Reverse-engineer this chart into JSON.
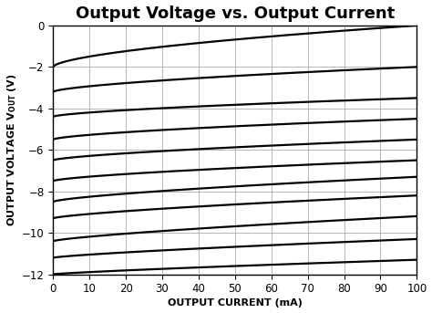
{
  "title": "Output Voltage vs. Output Current",
  "xlabel": "OUTPUT CURRENT (mA)",
  "xlim": [
    0,
    100
  ],
  "ylim": [
    -12,
    0
  ],
  "xticks": [
    0,
    10,
    20,
    30,
    40,
    50,
    60,
    70,
    80,
    90,
    100
  ],
  "yticks": [
    0,
    -2,
    -4,
    -6,
    -8,
    -10,
    -12
  ],
  "grid_color": "#aaaaaa",
  "line_color": "#000000",
  "line_width": 1.6,
  "bg_color": "#ffffff",
  "curves": [
    {
      "y0": -2.0,
      "y100": 0.0,
      "power": 0.6
    },
    {
      "y0": -3.2,
      "y100": -2.0,
      "power": 0.65
    },
    {
      "y0": -4.4,
      "y100": -3.5,
      "power": 0.65
    },
    {
      "y0": -5.5,
      "y100": -4.5,
      "power": 0.65
    },
    {
      "y0": -6.5,
      "y100": -5.5,
      "power": 0.68
    },
    {
      "y0": -7.5,
      "y100": -6.5,
      "power": 0.68
    },
    {
      "y0": -8.5,
      "y100": -7.3,
      "power": 0.7
    },
    {
      "y0": -9.3,
      "y100": -8.2,
      "power": 0.72
    },
    {
      "y0": -10.4,
      "y100": -9.2,
      "power": 0.75
    },
    {
      "y0": -11.2,
      "y100": -10.3,
      "power": 0.78
    },
    {
      "y0": -12.0,
      "y100": -11.3,
      "power": 0.82
    }
  ],
  "title_fontsize": 13,
  "axis_label_fontsize": 8,
  "tick_fontsize": 8.5
}
